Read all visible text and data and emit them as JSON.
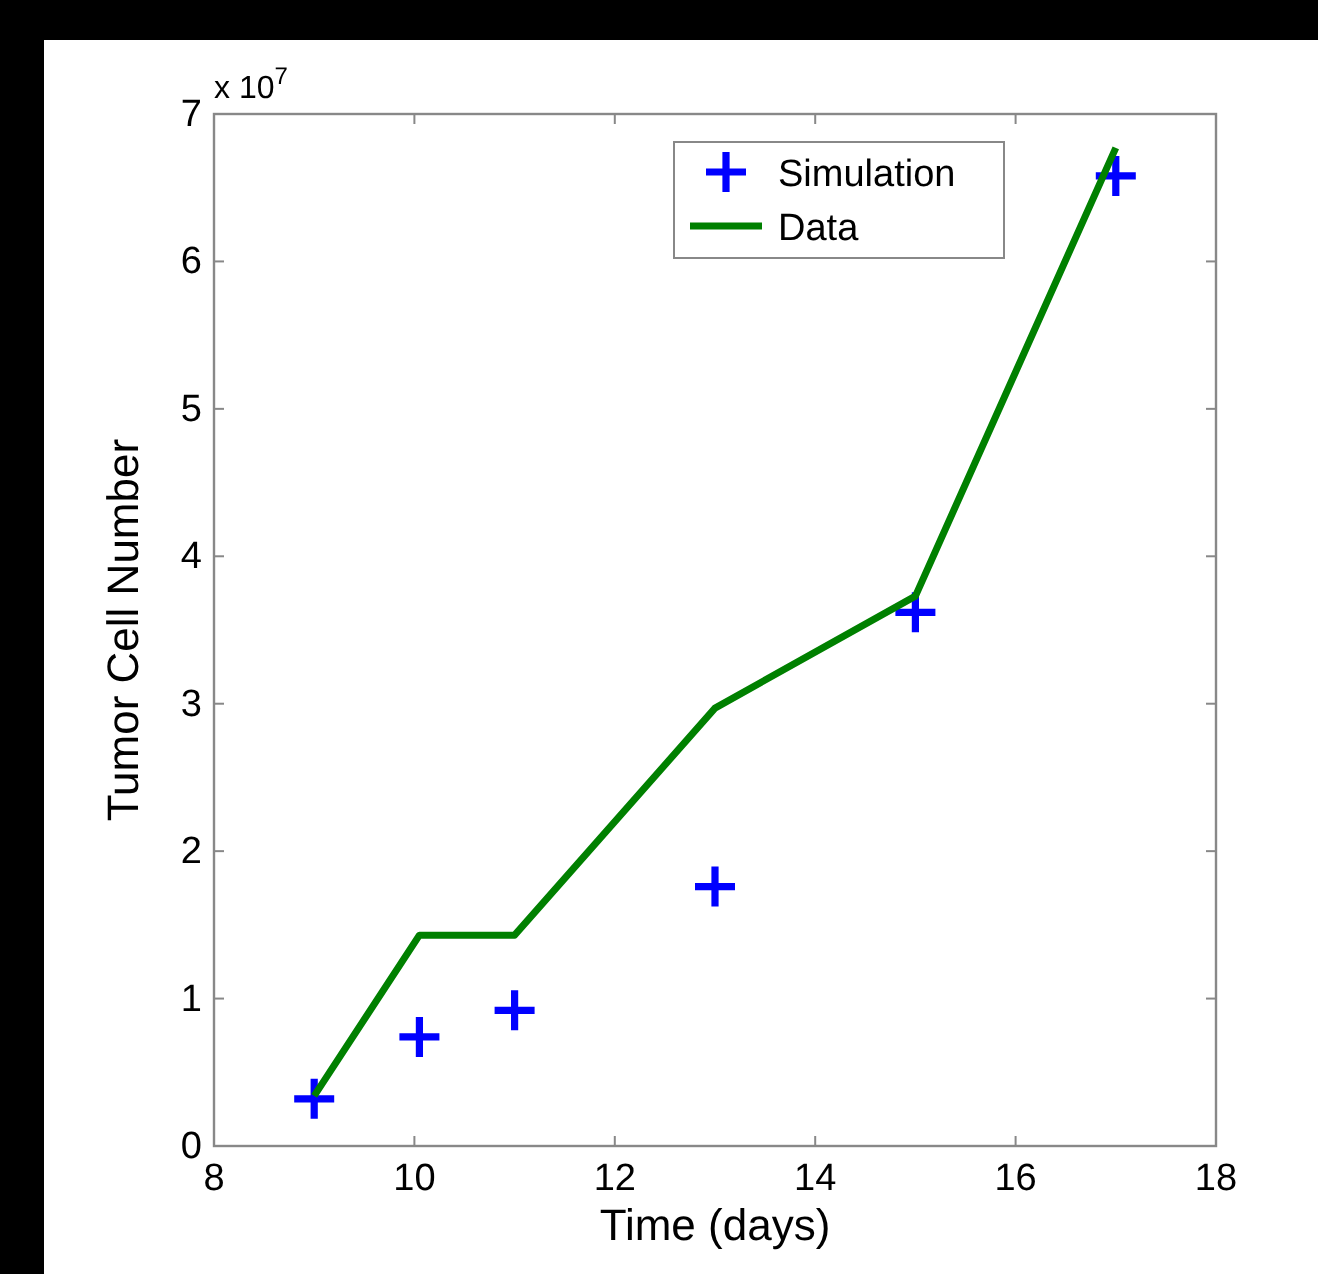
{
  "chart_data": {
    "type": "line",
    "xlabel": "Time (days)",
    "ylabel": "Tumor Cell Number",
    "annotations": [
      "x 10$^{7}$"
    ],
    "series": [
      {
        "name": "Simulation",
        "type": "scatter",
        "color": "#0000ff",
        "marker": "cross",
        "x": [
          9,
          10.05,
          11,
          13,
          15,
          17
        ],
        "values": [
          0.32,
          0.74,
          0.92,
          1.76,
          3.62,
          6.58
        ]
      },
      {
        "name": "Data",
        "color": "#008000",
        "marker": "none",
        "line_style": "solid",
        "x": [
          9,
          10.05,
          11,
          13,
          15,
          17
        ],
        "values": [
          0.34,
          1.43,
          1.43,
          2.97,
          3.73,
          6.77
        ]
      }
    ],
    "xlim": [
      8,
      18
    ],
    "xticks": [
      8,
      10,
      12,
      14,
      16,
      18
    ],
    "ylim": [
      0,
      7
    ],
    "yticks": [
      0,
      1,
      2,
      3,
      4,
      5,
      6,
      7
    ],
    "grid": false,
    "legend": "top right"
  }
}
